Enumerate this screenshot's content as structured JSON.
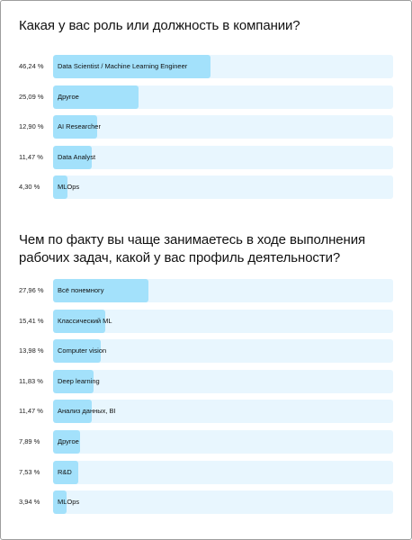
{
  "surveys": [
    {
      "title": "Какая у вас роль или должность в компании?",
      "options": [
        {
          "percent_label": "46,24 %",
          "value": 46.24,
          "label": "Data Scientist / Machine Learning Engineer"
        },
        {
          "percent_label": "25,09 %",
          "value": 25.09,
          "label": "Другое"
        },
        {
          "percent_label": "12,90 %",
          "value": 12.9,
          "label": "AI Researcher"
        },
        {
          "percent_label": "11,47 %",
          "value": 11.47,
          "label": "Data Analyst"
        },
        {
          "percent_label": "4,30 %",
          "value": 4.3,
          "label": "MLOps"
        }
      ]
    },
    {
      "title": "Чем по факту вы чаще занимаетесь в ходе выполнения рабочих задач, какой у вас профиль деятельности?",
      "options": [
        {
          "percent_label": "27,96 %",
          "value": 27.96,
          "label": "Всё понемногу"
        },
        {
          "percent_label": "15,41 %",
          "value": 15.41,
          "label": "Классический ML"
        },
        {
          "percent_label": "13,98 %",
          "value": 13.98,
          "label": "Computer vision"
        },
        {
          "percent_label": "11,83 %",
          "value": 11.83,
          "label": "Deep learning"
        },
        {
          "percent_label": "11,47 %",
          "value": 11.47,
          "label": "Анализ данных, BI"
        },
        {
          "percent_label": "7,89 %",
          "value": 7.89,
          "label": "Другое"
        },
        {
          "percent_label": "7,53 %",
          "value": 7.53,
          "label": "R&D"
        },
        {
          "percent_label": "3,94 %",
          "value": 3.94,
          "label": "MLOps"
        }
      ]
    }
  ],
  "colors": {
    "track": "#e8f6fe",
    "fill": "#a3e1fb"
  }
}
